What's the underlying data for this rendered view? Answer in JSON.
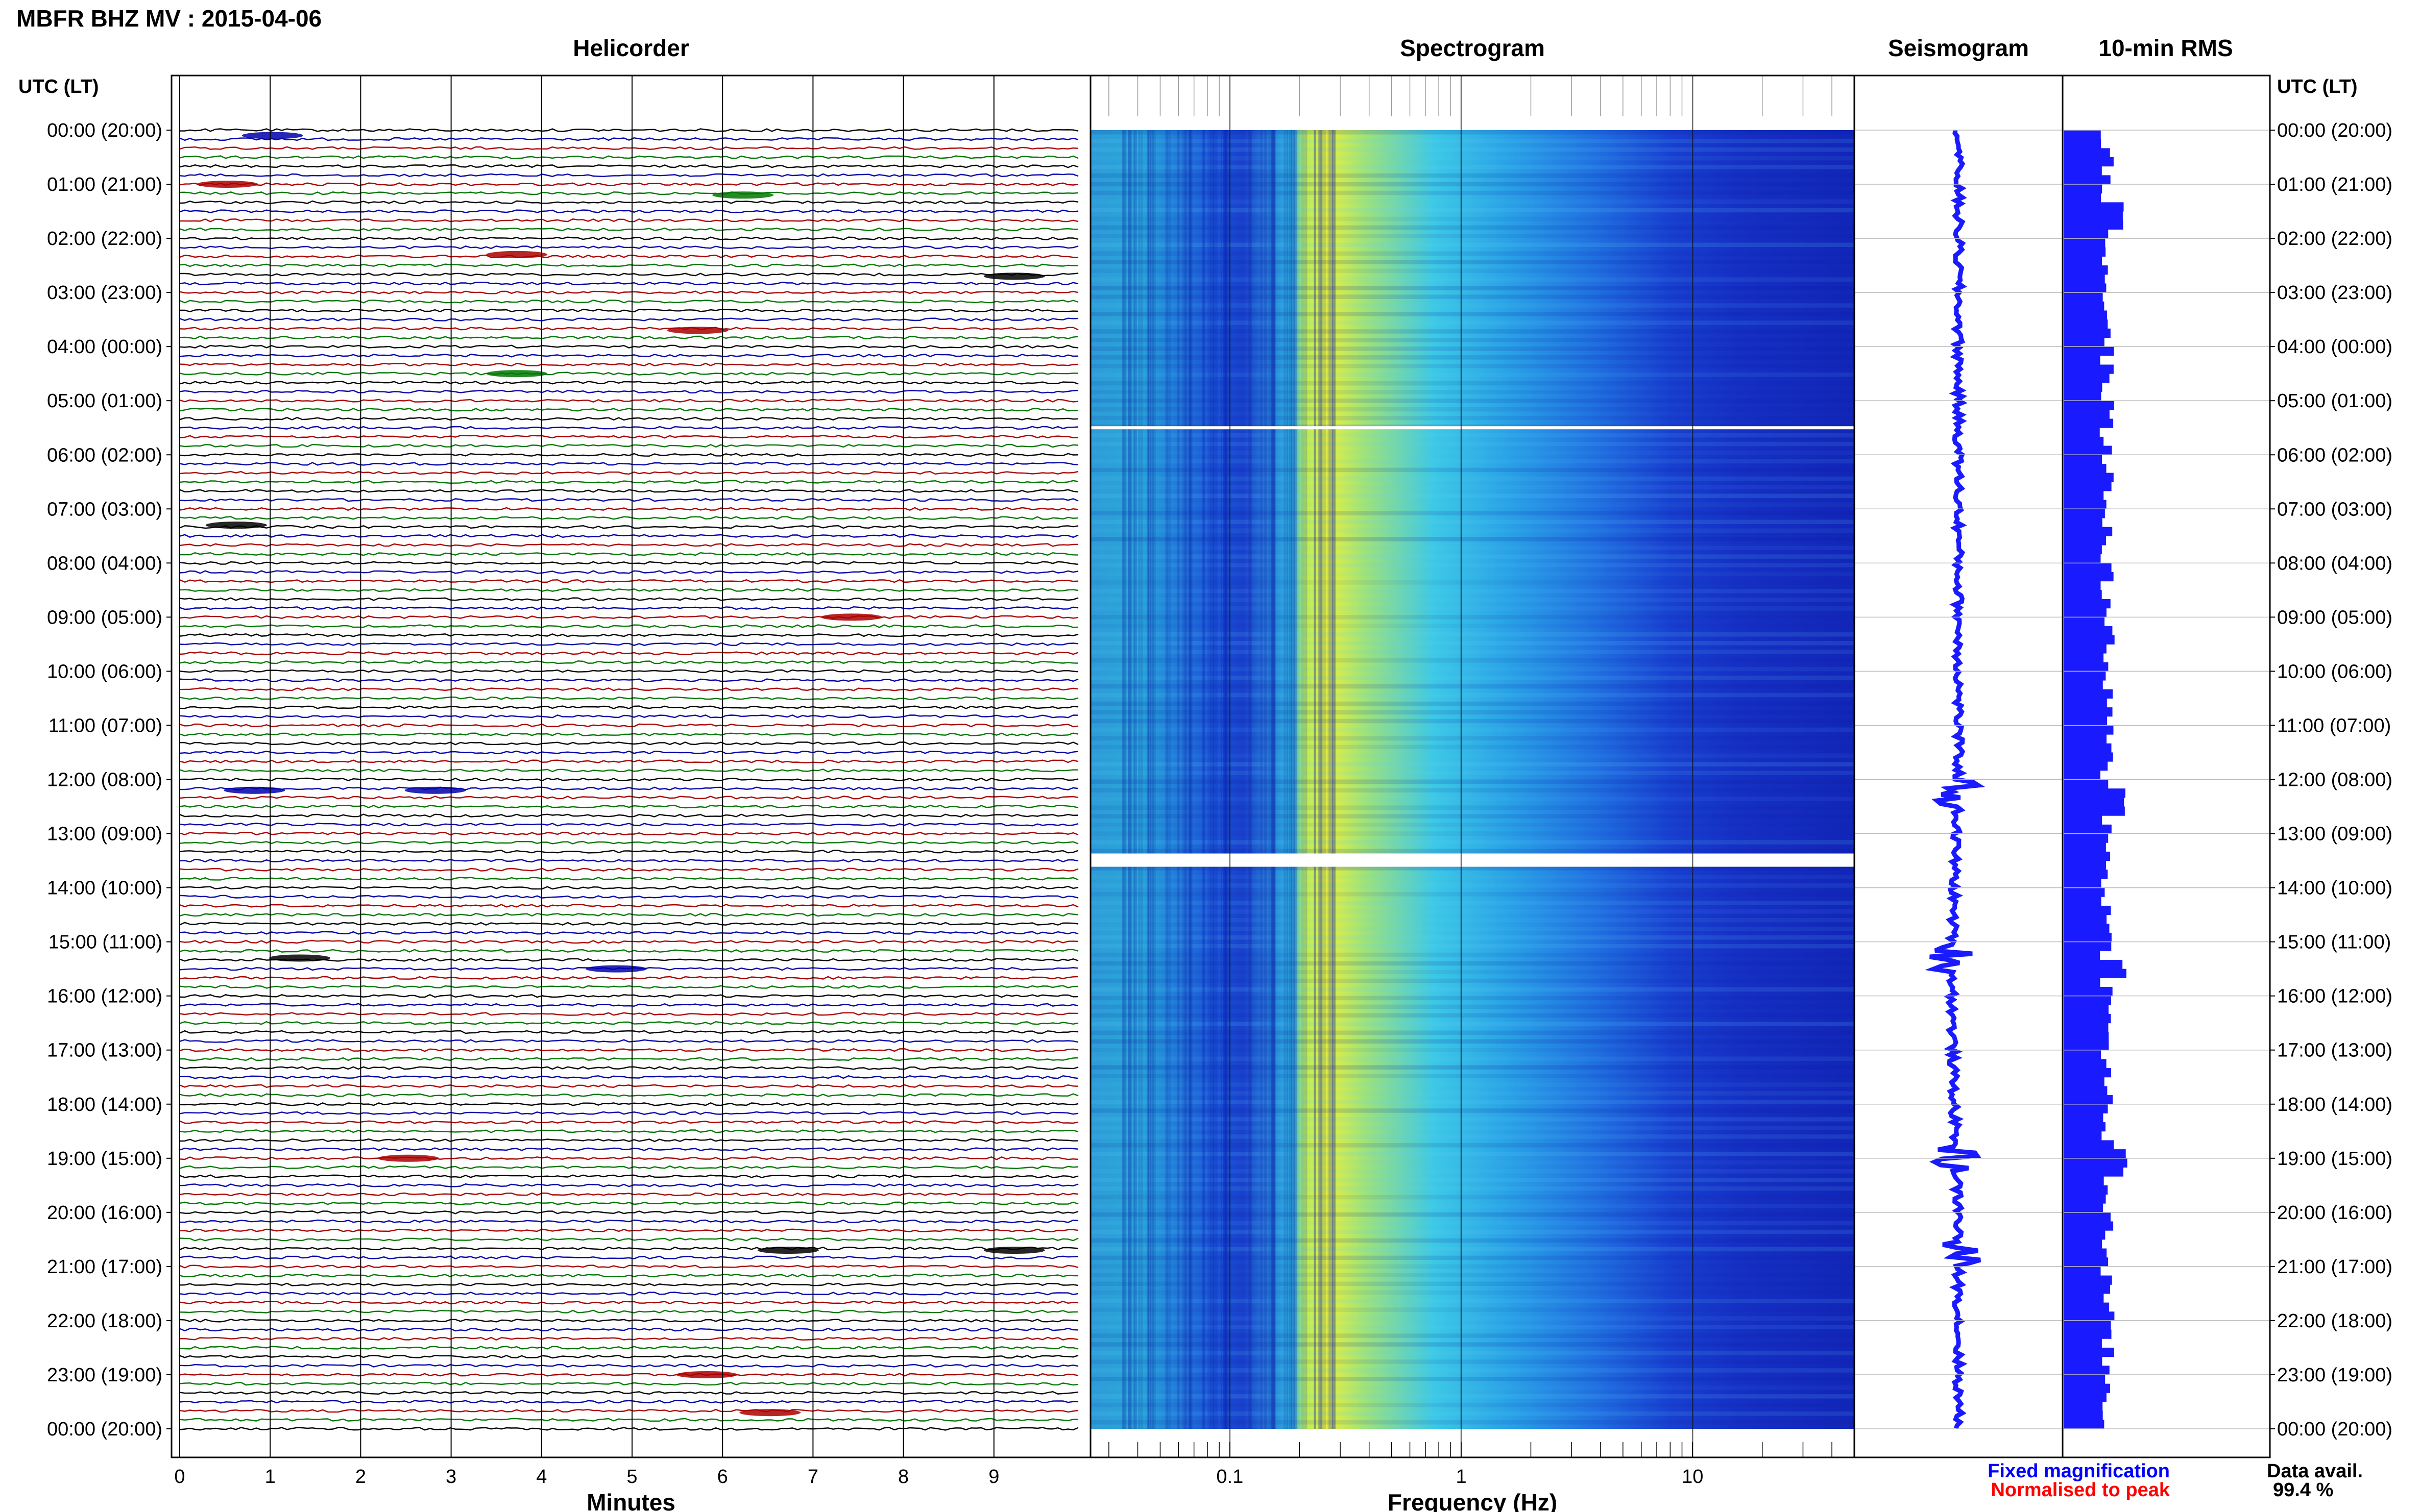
{
  "header": {
    "title": "MBFR BHZ MV : 2015-04-06",
    "utc_label_left": "UTC (LT)",
    "utc_label_right": "UTC (LT)"
  },
  "panels": {
    "helicorder": "Helicorder",
    "spectrogram": "Spectrogram",
    "seismogram": "Seismogram",
    "rms": "10-min RMS"
  },
  "time_labels": [
    "00:00 (20:00)",
    "01:00 (21:00)",
    "02:00 (22:00)",
    "03:00 (23:00)",
    "04:00 (00:00)",
    "05:00 (01:00)",
    "06:00 (02:00)",
    "07:00 (03:00)",
    "08:00 (04:00)",
    "09:00 (05:00)",
    "10:00 (06:00)",
    "11:00 (07:00)",
    "12:00 (08:00)",
    "13:00 (09:00)",
    "14:00 (10:00)",
    "15:00 (11:00)",
    "16:00 (12:00)",
    "17:00 (13:00)",
    "18:00 (14:00)",
    "19:00 (15:00)",
    "20:00 (16:00)",
    "21:00 (17:00)",
    "22:00 (18:00)",
    "23:00 (19:00)",
    "00:00 (20:00)"
  ],
  "minutes_ticks": [
    "0",
    "1",
    "2",
    "3",
    "4",
    "5",
    "6",
    "7",
    "8",
    "9"
  ],
  "freq_ticks": [
    "0.1",
    "1",
    "10"
  ],
  "axes": {
    "minutes": "Minutes",
    "frequency": "Frequency (Hz)"
  },
  "legend": {
    "fixed": "Fixed magnification",
    "normalised": "Normalised to peak",
    "fixed_color": "#0000ff",
    "normalised_color": "#ff0000"
  },
  "availability": {
    "label": "Data avail.",
    "value": "99.4 %"
  },
  "colors": {
    "trace_cycle": [
      "#000000",
      "#0000aa",
      "#aa0000",
      "#007700"
    ],
    "rms_bar": "#1a1aff",
    "spectrogram_low": "#1919c8",
    "spectrogram_peak": "#e6f03c"
  },
  "chart_data": [
    {
      "type": "heatmap",
      "title": "Helicorder",
      "xlabel": "Minutes",
      "ylabel": "UTC (LT)",
      "xlim": [
        0,
        10
      ],
      "x_ticks": [
        0,
        1,
        2,
        3,
        4,
        5,
        6,
        7,
        8,
        9
      ],
      "rows_per_hour": 6,
      "hours": 24,
      "events": [
        {
          "hour": 0.1,
          "minute": 0.8
        },
        {
          "hour": 1.0,
          "minute": 0.3
        },
        {
          "hour": 1.2,
          "minute": 6.0
        },
        {
          "hour": 2.3,
          "minute": 3.5
        },
        {
          "hour": 2.7,
          "minute": 9.0
        },
        {
          "hour": 3.7,
          "minute": 5.5
        },
        {
          "hour": 4.5,
          "minute": 3.5
        },
        {
          "hour": 7.3,
          "minute": 0.4
        },
        {
          "hour": 9.0,
          "minute": 7.2
        },
        {
          "hour": 12.2,
          "minute": 0.6
        },
        {
          "hour": 12.2,
          "minute": 2.6
        },
        {
          "hour": 15.3,
          "minute": 1.1
        },
        {
          "hour": 15.5,
          "minute": 4.6
        },
        {
          "hour": 19.0,
          "minute": 2.3
        },
        {
          "hour": 20.7,
          "minute": 6.5
        },
        {
          "hour": 20.7,
          "minute": 9.0
        },
        {
          "hour": 23.0,
          "minute": 5.6
        },
        {
          "hour": 23.7,
          "minute": 6.3
        }
      ]
    },
    {
      "type": "heatmap",
      "title": "Spectrogram",
      "xlabel": "Frequency (Hz)",
      "x_scale": "log",
      "xlim": [
        0.025,
        50
      ],
      "x_ticks": [
        0.1,
        1,
        10
      ],
      "peak_band_hz": [
        0.2,
        0.4
      ],
      "data_gaps_hour": [
        5.5,
        13.5
      ]
    },
    {
      "type": "line",
      "title": "Seismogram",
      "events_hour": [
        12.2,
        15.3,
        19.0,
        20.7
      ]
    },
    {
      "type": "bar",
      "title": "10-min RMS",
      "interval_minutes": 10,
      "hours": 24,
      "peaks_hour": [
        1.5,
        12.3,
        15.4,
        19.0
      ]
    }
  ]
}
